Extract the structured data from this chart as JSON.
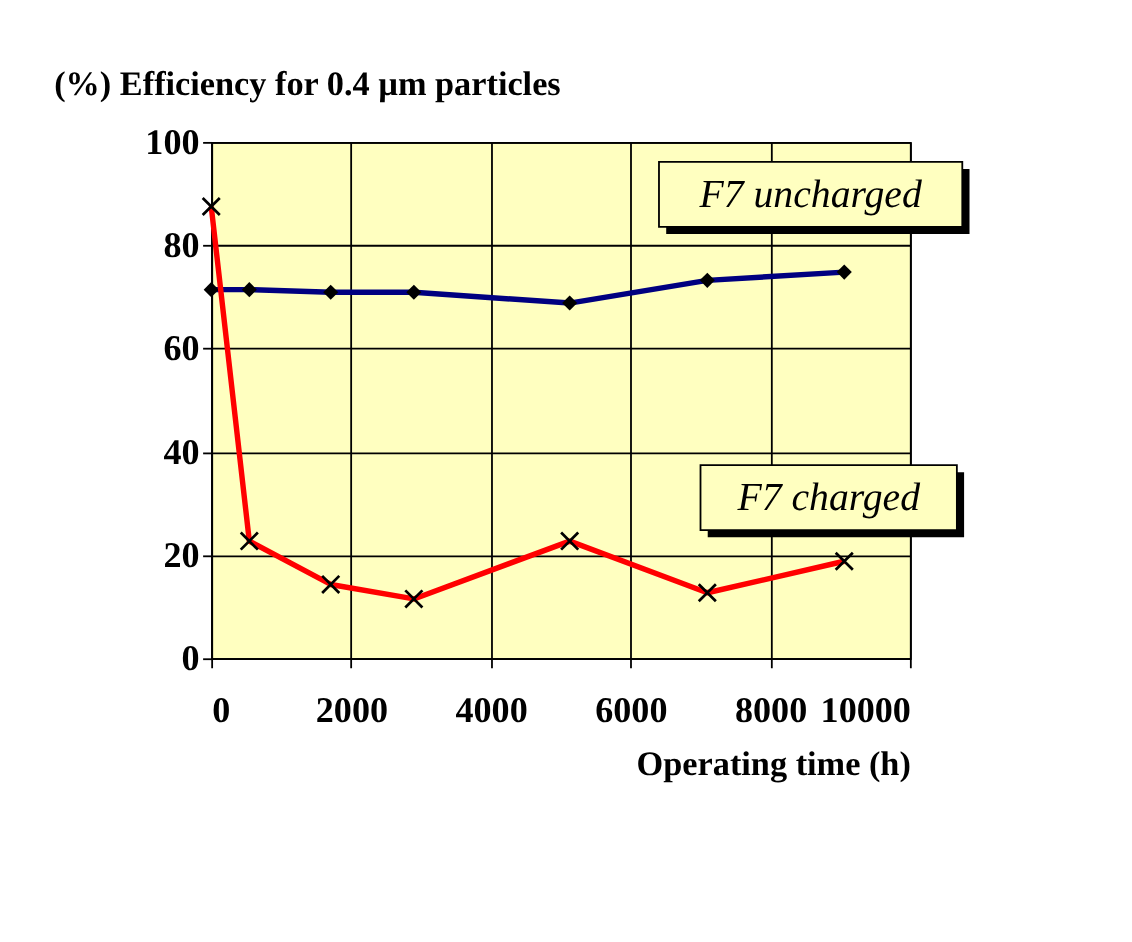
{
  "chart_data": {
    "type": "line",
    "title": "(%) Efficiency for 0.4 µm particles",
    "xlabel": "Operating time (h)",
    "x": [
      0,
      545,
      1710,
      2900,
      5130,
      7100,
      9060
    ],
    "series": [
      {
        "name": "F7 uncharged",
        "color": "#000080",
        "marker": "diamond",
        "values": [
          71.4,
          71.4,
          70.9,
          70.9,
          68.8,
          73.2,
          74.8
        ]
      },
      {
        "name": "F7 charged",
        "color": "#ff0000",
        "marker": "cross",
        "values": [
          87.5,
          22.7,
          14.3,
          11.5,
          22.7,
          12.7,
          18.8
        ]
      }
    ],
    "xlim": [
      0,
      10000
    ],
    "xticks": [
      0,
      2000,
      4000,
      6000,
      8000,
      10000
    ],
    "ylim": [
      0,
      100
    ],
    "yticks": [
      0,
      20,
      40,
      60,
      80,
      100
    ],
    "grid": true,
    "legend": false
  }
}
